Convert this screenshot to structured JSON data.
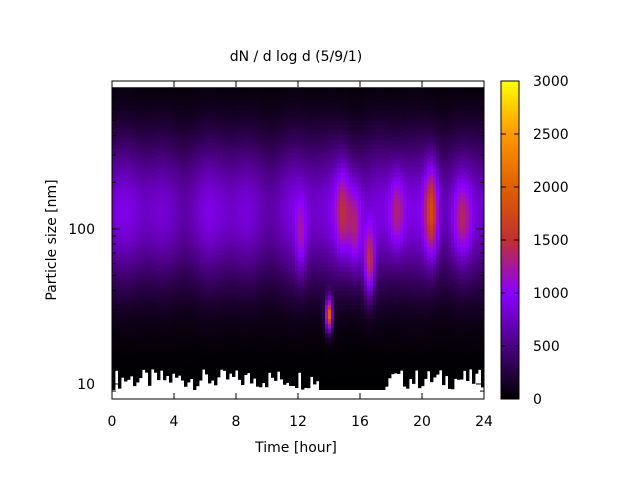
{
  "chart_data": {
    "type": "heatmap",
    "title": "dN / d log d (5/9/1)",
    "xlabel": "Time [hour]",
    "ylabel": "Particle size [nm]",
    "x_range": [
      0,
      24
    ],
    "x_ticks": [
      0,
      4,
      8,
      12,
      16,
      20,
      24
    ],
    "y_range_nm": [
      8,
      900
    ],
    "y_scale": "log",
    "y_tick_labels": [
      {
        "value": 10,
        "label": "10"
      },
      {
        "value": 100,
        "label": "100"
      }
    ],
    "data_top_nm": 820,
    "colorbar": {
      "range": [
        0,
        3000
      ],
      "ticks": [
        0,
        500,
        1000,
        1500,
        2000,
        2500,
        3000
      ],
      "palette": [
        "#000000",
        "#4b0082",
        "#8b00ff",
        "#c03030",
        "#e06000",
        "#ff9900",
        "#ffff00"
      ],
      "palette_stops": [
        0,
        500,
        1000,
        1500,
        2000,
        2500,
        3000
      ]
    },
    "background_field": {
      "peak_nm": 130,
      "base_concentration": 930,
      "log_width": 0.48
    },
    "events": [
      {
        "time_h": 12.2,
        "center_nm": 85,
        "amplitude": 450,
        "time_width_h": 0.35,
        "log_width": 0.25
      },
      {
        "time_h": 14.0,
        "center_nm": 28,
        "amplitude": 1900,
        "time_width_h": 0.22,
        "log_width": 0.1
      },
      {
        "time_h": 14.9,
        "center_nm": 130,
        "amplitude": 700,
        "time_width_h": 0.5,
        "log_width": 0.3
      },
      {
        "time_h": 15.7,
        "center_nm": 100,
        "amplitude": 650,
        "time_width_h": 0.45,
        "log_width": 0.3
      },
      {
        "time_h": 16.6,
        "center_nm": 60,
        "amplitude": 1000,
        "time_width_h": 0.35,
        "log_width": 0.22
      },
      {
        "time_h": 18.4,
        "center_nm": 130,
        "amplitude": 550,
        "time_width_h": 0.5,
        "log_width": 0.25
      },
      {
        "time_h": 20.6,
        "center_nm": 130,
        "amplitude": 1050,
        "time_width_h": 0.45,
        "log_width": 0.3
      },
      {
        "time_h": 22.6,
        "center_nm": 115,
        "amplitude": 550,
        "time_width_h": 0.6,
        "log_width": 0.25
      }
    ],
    "lower_cutoff_nm_range": [
      9.2,
      12.5
    ]
  }
}
